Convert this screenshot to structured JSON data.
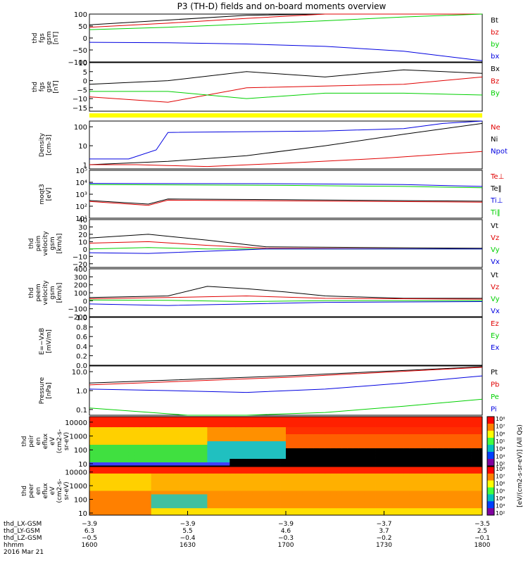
{
  "title": "P3 (TH-D) fields and on-board moments overview",
  "colors": {
    "black": "#000000",
    "red": "#e00000",
    "green": "#00d000",
    "blue": "#0000e0",
    "yellow": "#ffff00"
  },
  "chart_data": [
    {
      "type": "line",
      "id": "fgs-gsm",
      "ylabel": [
        "thd",
        "fgs",
        "gsm",
        "[nT]"
      ],
      "ylim": [
        -100,
        100
      ],
      "yticks": [
        "100",
        "50",
        "0",
        "−50",
        "−100"
      ],
      "legend": [
        {
          "name": "Bt",
          "color": "black"
        },
        {
          "name": "bz",
          "color": "red"
        },
        {
          "name": "by",
          "color": "green"
        },
        {
          "name": "bx",
          "color": "blue"
        }
      ],
      "series": [
        {
          "name": "Bt",
          "color": "black",
          "x": [
            0,
            20,
            40,
            60,
            80,
            100
          ],
          "y": [
            55,
            75,
            95,
            100,
            100,
            100
          ]
        },
        {
          "name": "bz",
          "color": "red",
          "x": [
            0,
            20,
            40,
            60,
            80,
            100
          ],
          "y": [
            45,
            62,
            82,
            100,
            100,
            100
          ]
        },
        {
          "name": "by",
          "color": "green",
          "x": [
            0,
            20,
            40,
            60,
            80,
            100
          ],
          "y": [
            35,
            45,
            58,
            72,
            88,
            100
          ]
        },
        {
          "name": "bx",
          "color": "blue",
          "x": [
            0,
            20,
            40,
            60,
            80,
            100
          ],
          "y": [
            -18,
            -20,
            -25,
            -35,
            -55,
            -95
          ]
        }
      ]
    },
    {
      "type": "line",
      "id": "fgs-gse",
      "ylabel": [
        "thd",
        "fgs",
        "gse",
        "[nT]"
      ],
      "ylim": [
        -17,
        10
      ],
      "yticks": [
        "10",
        "5",
        "0",
        "−5",
        "−10",
        "−15"
      ],
      "legend": [
        {
          "name": "Bx",
          "color": "black"
        },
        {
          "name": "Bz",
          "color": "red"
        },
        {
          "name": "By",
          "color": "green"
        }
      ],
      "series": [
        {
          "name": "Bx",
          "color": "black",
          "x": [
            0,
            20,
            40,
            60,
            80,
            100
          ],
          "y": [
            -2,
            0,
            5,
            2,
            6,
            4
          ]
        },
        {
          "name": "Bz",
          "color": "red",
          "x": [
            0,
            20,
            40,
            60,
            80,
            100
          ],
          "y": [
            -9,
            -12,
            -4,
            -3,
            -2,
            2
          ]
        },
        {
          "name": "By",
          "color": "green",
          "x": [
            0,
            20,
            40,
            60,
            80,
            100
          ],
          "y": [
            -6,
            -6,
            -10,
            -7,
            -7,
            -8
          ]
        }
      ]
    },
    {
      "type": "line",
      "id": "density",
      "ylabel": [
        "Density",
        "[cm-3]"
      ],
      "yscale": "log",
      "ylim": [
        0.6,
        200
      ],
      "yticks": [
        "100",
        "10",
        "1"
      ],
      "legend": [
        {
          "name": "Ne",
          "color": "red"
        },
        {
          "name": "Ni",
          "color": "black"
        },
        {
          "name": "Npot",
          "color": "blue"
        }
      ],
      "series": [
        {
          "name": "Ni",
          "color": "black",
          "x": [
            0,
            20,
            40,
            60,
            80,
            100
          ],
          "y": [
            1,
            1.5,
            3,
            10,
            40,
            150
          ]
        },
        {
          "name": "Ne",
          "color": "red",
          "x": [
            0,
            12,
            20,
            30,
            50,
            75,
            100
          ],
          "y": [
            1,
            1,
            0.9,
            0.8,
            1.2,
            2.2,
            5
          ]
        },
        {
          "name": "Npot",
          "color": "blue",
          "x": [
            0,
            10,
            17,
            20,
            60,
            80,
            90,
            100
          ],
          "y": [
            2,
            2,
            6,
            50,
            60,
            80,
            150,
            200
          ]
        }
      ]
    },
    {
      "type": "line",
      "id": "temperature",
      "ylabel": [
        "moqt3",
        "[eV]"
      ],
      "yscale": "log",
      "ylim": [
        10,
        100000
      ],
      "yticks": [
        "10⁵",
        "10⁴",
        "10³",
        "10²",
        "10¹"
      ],
      "legend": [
        {
          "name": "Te⊥",
          "color": "red"
        },
        {
          "name": "Te‖",
          "color": "black"
        },
        {
          "name": "Ti⊥",
          "color": "blue"
        },
        {
          "name": "Ti‖",
          "color": "green"
        }
      ],
      "series": [
        {
          "name": "Ti⊥",
          "color": "blue",
          "x": [
            0,
            50,
            80,
            100
          ],
          "y": [
            8000,
            7500,
            6500,
            4500
          ]
        },
        {
          "name": "Ti‖",
          "color": "green",
          "x": [
            0,
            50,
            80,
            100
          ],
          "y": [
            6500,
            5500,
            4500,
            3500
          ]
        },
        {
          "name": "Te‖",
          "color": "black",
          "x": [
            0,
            15,
            20,
            50,
            100
          ],
          "y": [
            300,
            150,
            400,
            350,
            260
          ]
        },
        {
          "name": "Te⊥",
          "color": "red",
          "x": [
            0,
            15,
            20,
            50,
            100
          ],
          "y": [
            250,
            120,
            320,
            280,
            220
          ]
        }
      ]
    },
    {
      "type": "line",
      "id": "peim-velocity",
      "ylabel": [
        "thd",
        "peim",
        "velocity",
        "gsm",
        "[km/s]"
      ],
      "ylim": [
        -25,
        40
      ],
      "yticks": [
        "40",
        "30",
        "20",
        "10",
        "0",
        "−10",
        "−20"
      ],
      "legend": [
        {
          "name": "Vt",
          "color": "black"
        },
        {
          "name": "Vz",
          "color": "red"
        },
        {
          "name": "Vy",
          "color": "green"
        },
        {
          "name": "Vx",
          "color": "blue"
        }
      ],
      "series": [
        {
          "name": "Vt",
          "color": "black",
          "x": [
            0,
            15,
            30,
            45,
            100
          ],
          "y": [
            15,
            20,
            12,
            3,
            1
          ]
        },
        {
          "name": "Vz",
          "color": "red",
          "x": [
            0,
            15,
            30,
            45,
            100
          ],
          "y": [
            8,
            10,
            5,
            1,
            0
          ]
        },
        {
          "name": "Vy",
          "color": "green",
          "x": [
            0,
            15,
            30,
            45,
            100
          ],
          "y": [
            0,
            2,
            0,
            0,
            0
          ]
        },
        {
          "name": "Vx",
          "color": "blue",
          "x": [
            0,
            15,
            30,
            45,
            100
          ],
          "y": [
            -5,
            -6,
            -3,
            0,
            0
          ]
        }
      ]
    },
    {
      "type": "line",
      "id": "peem-velocity",
      "ylabel": [
        "thd",
        "peem",
        "velocity",
        "gsm",
        "[km/s]"
      ],
      "ylim": [
        -200,
        400
      ],
      "yticks": [
        "400",
        "300",
        "200",
        "100",
        "0",
        "−100",
        "−200"
      ],
      "legend": [
        {
          "name": "Vt",
          "color": "black"
        },
        {
          "name": "Vz",
          "color": "red"
        },
        {
          "name": "Vy",
          "color": "green"
        },
        {
          "name": "Vx",
          "color": "blue"
        }
      ],
      "series": [
        {
          "name": "Vt",
          "color": "black",
          "x": [
            0,
            20,
            30,
            40,
            50,
            60,
            80,
            100
          ],
          "y": [
            40,
            60,
            180,
            150,
            110,
            60,
            30,
            30
          ]
        },
        {
          "name": "Vz",
          "color": "red",
          "x": [
            0,
            20,
            40,
            60,
            100
          ],
          "y": [
            25,
            40,
            60,
            30,
            20
          ]
        },
        {
          "name": "Vy",
          "color": "green",
          "x": [
            0,
            20,
            40,
            60,
            100
          ],
          "y": [
            10,
            5,
            -10,
            0,
            0
          ]
        },
        {
          "name": "Vx",
          "color": "blue",
          "x": [
            0,
            20,
            40,
            60,
            100
          ],
          "y": [
            -40,
            -60,
            -40,
            -20,
            -10
          ]
        }
      ]
    },
    {
      "type": "line",
      "id": "efield",
      "ylabel": [
        "E=−VxB",
        "[mV/m]"
      ],
      "ylim": [
        0,
        1
      ],
      "yticks": [
        "1.0",
        "0.8",
        "0.6",
        "0.4",
        "0.2",
        "0.0"
      ],
      "legend": [
        {
          "name": "Ez",
          "color": "red"
        },
        {
          "name": "Ey",
          "color": "green"
        },
        {
          "name": "Ex",
          "color": "blue"
        }
      ],
      "series": []
    },
    {
      "type": "line",
      "id": "pressure",
      "ylabel": [
        "Pressure",
        "[nPa]"
      ],
      "yscale": "log",
      "ylim": [
        0.05,
        20
      ],
      "yticks": [
        "10.0",
        "1.0",
        "0.1"
      ],
      "legend": [
        {
          "name": "Pt",
          "color": "black"
        },
        {
          "name": "Pb",
          "color": "red"
        },
        {
          "name": "Pe",
          "color": "green"
        },
        {
          "name": "Pi",
          "color": "blue"
        }
      ],
      "series": [
        {
          "name": "Pt",
          "color": "black",
          "x": [
            0,
            50,
            100
          ],
          "y": [
            2.5,
            6,
            18
          ]
        },
        {
          "name": "Pb",
          "color": "red",
          "x": [
            0,
            50,
            100
          ],
          "y": [
            2,
            5,
            17
          ]
        },
        {
          "name": "Pi",
          "color": "blue",
          "x": [
            0,
            20,
            40,
            60,
            80,
            100
          ],
          "y": [
            1.2,
            1.0,
            0.8,
            1.2,
            2.5,
            6
          ]
        },
        {
          "name": "Pe",
          "color": "green",
          "x": [
            0,
            25,
            40,
            60,
            80,
            100
          ],
          "y": [
            0.12,
            0.05,
            0.05,
            0.07,
            0.15,
            0.35
          ]
        }
      ]
    },
    {
      "type": "heatmap",
      "id": "peir-spec",
      "ylabel": [
        "thd",
        "peir",
        "en",
        "eflux",
        "eV",
        "(cm2-s-",
        "sr-eV)"
      ],
      "yscale": "log",
      "ylim": [
        7,
        25000
      ],
      "yticks": [
        "10000",
        "1000",
        "100",
        "10"
      ]
    },
    {
      "type": "heatmap",
      "id": "peer-spec",
      "ylabel": [
        "thd",
        "peer",
        "en",
        "eflux",
        "eV",
        "(cm2-s-",
        "sr-eV)"
      ],
      "yscale": "log",
      "ylim": [
        7,
        25000
      ],
      "yticks": [
        "10000",
        "1000",
        "100",
        "10"
      ]
    }
  ],
  "colorbar": {
    "label": "[eV/(cm2-s-sr-eV)] (All Qs)",
    "ticks_top": [
      "10⁸",
      "10⁷",
      "10⁶",
      "10⁵",
      "10⁴",
      "10³",
      "10²"
    ],
    "ticks_bottom": [
      "10⁸",
      "10⁷",
      "10⁶",
      "10⁵",
      "10⁴",
      "10³",
      "10²"
    ]
  },
  "xaxis": {
    "rows": [
      {
        "label": "thd_LX-GSM",
        "values": [
          "−3.9",
          "−3.9",
          "−3.9",
          "−3.7",
          "−3.5"
        ]
      },
      {
        "label": "thd_LY-GSM",
        "values": [
          "6.3",
          "5.5",
          "4.6",
          "3.7",
          "2.5"
        ]
      },
      {
        "label": "thd_LZ-GSM",
        "values": [
          "−0.5",
          "−0.4",
          "−0.3",
          "−0.2",
          "−0.1"
        ]
      },
      {
        "label": "hhmm",
        "values": [
          "1600",
          "1630",
          "1700",
          "1730",
          "1800"
        ]
      }
    ],
    "date": "2016 Mar 21"
  }
}
